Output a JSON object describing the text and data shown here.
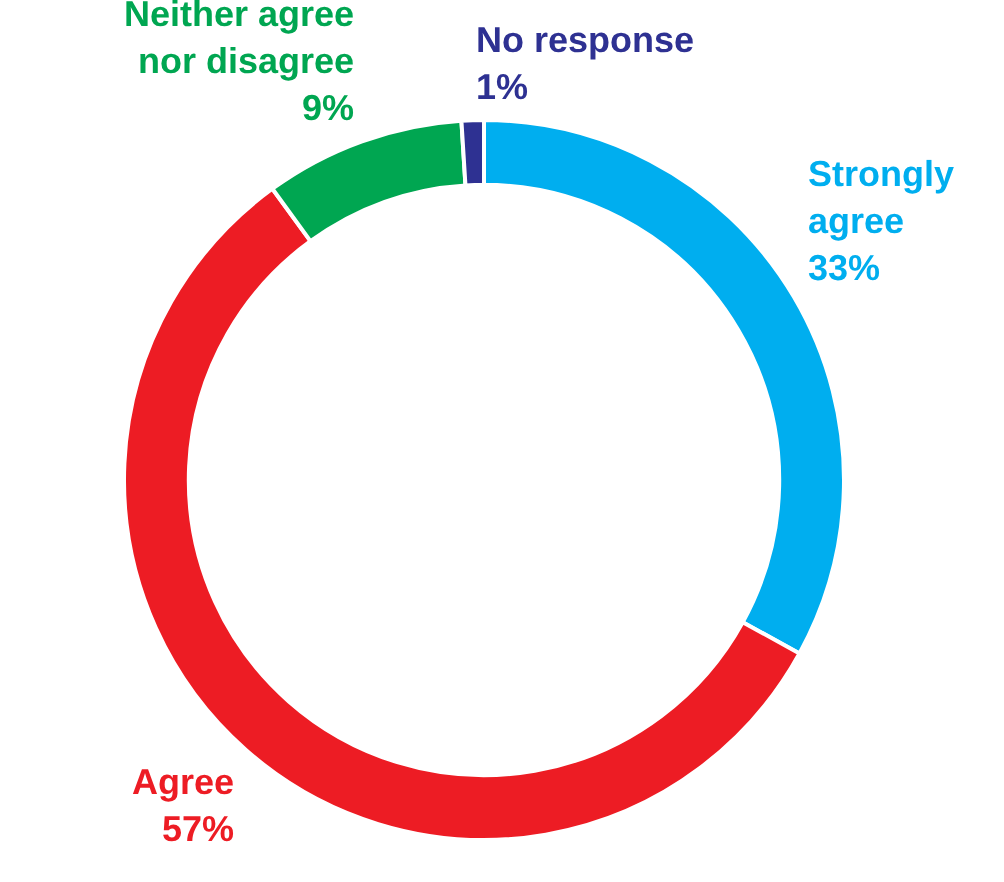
{
  "chart_data": {
    "type": "donut",
    "categories": [
      "Strongly agree",
      "Agree",
      "Neither agree nor disagree",
      "No response"
    ],
    "values": [
      33,
      57,
      9,
      1
    ],
    "value_labels": [
      "33%",
      "57%",
      "9%",
      "1%"
    ],
    "colors": [
      "#00aeef",
      "#ed1c24",
      "#00a651",
      "#2e3192"
    ],
    "legend": false
  }
}
